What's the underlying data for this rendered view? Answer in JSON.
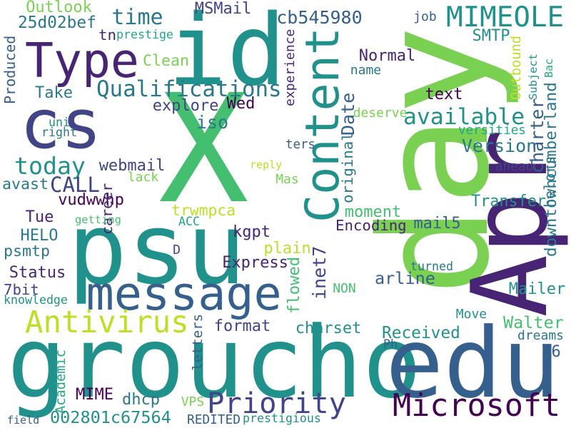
{
  "palette": {
    "c0": "#440154",
    "c1": "#482475",
    "c2": "#414487",
    "c3": "#355f8d",
    "c4": "#2a788e",
    "c5": "#21918c",
    "c6": "#22a884",
    "c7": "#44bf70",
    "c8": "#7ad151",
    "c9": "#bddf26"
  },
  "words": [
    {
      "text": "X",
      "color": "c7"
    },
    {
      "text": "day",
      "color": "c8"
    },
    {
      "text": "groucho",
      "color": "c5"
    },
    {
      "text": "psu",
      "color": "c5"
    },
    {
      "text": "id",
      "color": "c5"
    },
    {
      "text": "cs",
      "color": "c2"
    },
    {
      "text": "edu",
      "color": "c3"
    },
    {
      "text": "Apr",
      "color": "c1"
    },
    {
      "text": "message",
      "color": "c3"
    },
    {
      "text": "Content",
      "color": "c5"
    },
    {
      "text": "Type",
      "color": "c1"
    },
    {
      "text": "Antivirus",
      "color": "c9"
    },
    {
      "text": "Microsoft",
      "color": "c0"
    },
    {
      "text": "Priority",
      "color": "c2"
    },
    {
      "text": "MIMEOLE",
      "color": "c5"
    },
    {
      "text": "Qualifications",
      "color": "c4"
    },
    {
      "text": "available",
      "color": "c5"
    },
    {
      "text": "today",
      "color": "c5"
    },
    {
      "text": "time",
      "color": "c4"
    },
    {
      "text": "CALL",
      "color": "c2"
    },
    {
      "text": "Outlook",
      "color": "c8"
    },
    {
      "text": "MSMail",
      "color": "c2"
    },
    {
      "text": "cb545980",
      "color": "c3"
    },
    {
      "text": "25d02bef",
      "color": "c4"
    },
    {
      "text": "tn",
      "color": "c1"
    },
    {
      "text": "prestige",
      "color": "c6"
    },
    {
      "text": "job",
      "color": "c3"
    },
    {
      "text": "SMTP",
      "color": "c5"
    },
    {
      "text": "Clean",
      "color": "c8"
    },
    {
      "text": "Normal",
      "color": "c1"
    },
    {
      "text": "Produced",
      "color": "c3"
    },
    {
      "text": "Take",
      "color": "c4"
    },
    {
      "text": "explore",
      "color": "c2"
    },
    {
      "text": "Wed",
      "color": "c0"
    },
    {
      "text": "iso",
      "color": "c4"
    },
    {
      "text": "webmail",
      "color": "c2"
    },
    {
      "text": "text",
      "color": "c0"
    },
    {
      "text": "Version",
      "color": "c4"
    },
    {
      "text": "Outbound",
      "color": "c9"
    },
    {
      "text": "Subject",
      "color": "c5"
    },
    {
      "text": "charter",
      "color": "c3"
    },
    {
      "text": "downtowncumberland",
      "color": "c4"
    },
    {
      "text": "Bac",
      "color": "c6"
    },
    {
      "text": "experience",
      "color": "c1"
    },
    {
      "text": "name",
      "color": "c4"
    },
    {
      "text": "deserve",
      "color": "c8"
    },
    {
      "text": "Date",
      "color": "c3"
    },
    {
      "text": "original",
      "color": "c4"
    },
    {
      "text": "versities",
      "color": "c6"
    },
    {
      "text": "ters",
      "color": "c3"
    },
    {
      "text": "reply",
      "color": "c9"
    },
    {
      "text": "Mas",
      "color": "c8"
    },
    {
      "text": "lack",
      "color": "c8"
    },
    {
      "text": "avast",
      "color": "c4"
    },
    {
      "text": "vudwwhp",
      "color": "c0"
    },
    {
      "text": "Tue",
      "color": "c1"
    },
    {
      "text": "uni",
      "color": "c5"
    },
    {
      "text": "right",
      "color": "c4"
    },
    {
      "text": "career",
      "color": "c1"
    },
    {
      "text": "getting",
      "color": "c7"
    },
    {
      "text": "ahead",
      "color": "c2"
    },
    {
      "text": "helors",
      "color": "c4"
    },
    {
      "text": "Transfer",
      "color": "c5"
    },
    {
      "text": "trwmpca",
      "color": "c9"
    },
    {
      "text": "moment",
      "color": "c7"
    },
    {
      "text": "mail5",
      "color": "c3"
    },
    {
      "text": "Encoding",
      "color": "c1"
    },
    {
      "text": "HELO",
      "color": "c4"
    },
    {
      "text": "ACC",
      "color": "c6"
    },
    {
      "text": "kgpt",
      "color": "c1"
    },
    {
      "text": "psmtp",
      "color": "c4"
    },
    {
      "text": "D",
      "color": "c2"
    },
    {
      "text": "plain",
      "color": "c9"
    },
    {
      "text": "inet7",
      "color": "c2"
    },
    {
      "text": "arline",
      "color": "c3"
    },
    {
      "text": "turned",
      "color": "c4"
    },
    {
      "text": "Express",
      "color": "c1"
    },
    {
      "text": "Status",
      "color": "c1"
    },
    {
      "text": "flowed",
      "color": "c7"
    },
    {
      "text": "7bit",
      "color": "c2"
    },
    {
      "text": "NON",
      "color": "c7"
    },
    {
      "text": "Mailer",
      "color": "c5"
    },
    {
      "text": "knowledge",
      "color": "c5"
    },
    {
      "text": "Move",
      "color": "c5"
    },
    {
      "text": "letters",
      "color": "c3"
    },
    {
      "text": "format",
      "color": "c2"
    },
    {
      "text": "charset",
      "color": "c5"
    },
    {
      "text": "Walter",
      "color": "c7"
    },
    {
      "text": "dreams",
      "color": "c4"
    },
    {
      "text": "Received",
      "color": "c5"
    },
    {
      "text": "Ph",
      "color": "c3"
    },
    {
      "text": "V6",
      "color": "c3"
    },
    {
      "text": "Academic",
      "color": "c6"
    },
    {
      "text": "MIME",
      "color": "c0"
    },
    {
      "text": "dhcp",
      "color": "c4"
    },
    {
      "text": "VPS",
      "color": "c8"
    },
    {
      "text": "002801c67564",
      "color": "c5"
    },
    {
      "text": "field",
      "color": "c3"
    },
    {
      "text": "REDITED",
      "color": "c3"
    },
    {
      "text": "prestigious",
      "color": "c5"
    }
  ]
}
